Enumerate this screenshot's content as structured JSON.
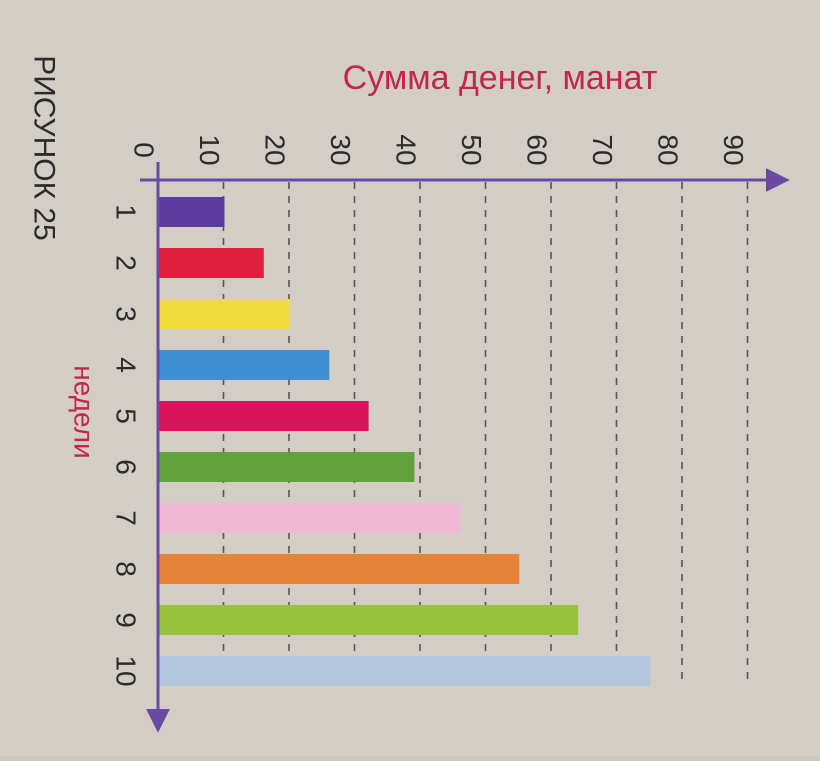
{
  "figure": {
    "caption": "РИСУНОК 25"
  },
  "colors": {
    "axis": "#6a4aa0",
    "title": "#c0264f",
    "xlabel": "#c0264f",
    "grid": "#555555",
    "text": "#2b2b2b",
    "background": "#d4cdc5"
  },
  "chart_data": {
    "type": "bar",
    "orientation": "horizontal",
    "title": "Сумма денег, манат",
    "xlabel": "недели",
    "ylabel": "",
    "categories": [
      "1",
      "2",
      "3",
      "4",
      "5",
      "6",
      "7",
      "8",
      "9",
      "10"
    ],
    "values": [
      10,
      16,
      20,
      26,
      32,
      39,
      46,
      55,
      64,
      75
    ],
    "bar_colors": [
      "#5a3d9e",
      "#e0203f",
      "#efdc3a",
      "#3f8fd2",
      "#d8145a",
      "#62a23e",
      "#efb8d2",
      "#e68338",
      "#98c23e",
      "#b4c6de"
    ],
    "value_axis_ticks": [
      "0",
      "10",
      "20",
      "30",
      "40",
      "50",
      "60",
      "70",
      "80",
      "90"
    ],
    "value_axis_range": [
      0,
      90
    ],
    "origin_label": "0",
    "grid": "dashed"
  }
}
